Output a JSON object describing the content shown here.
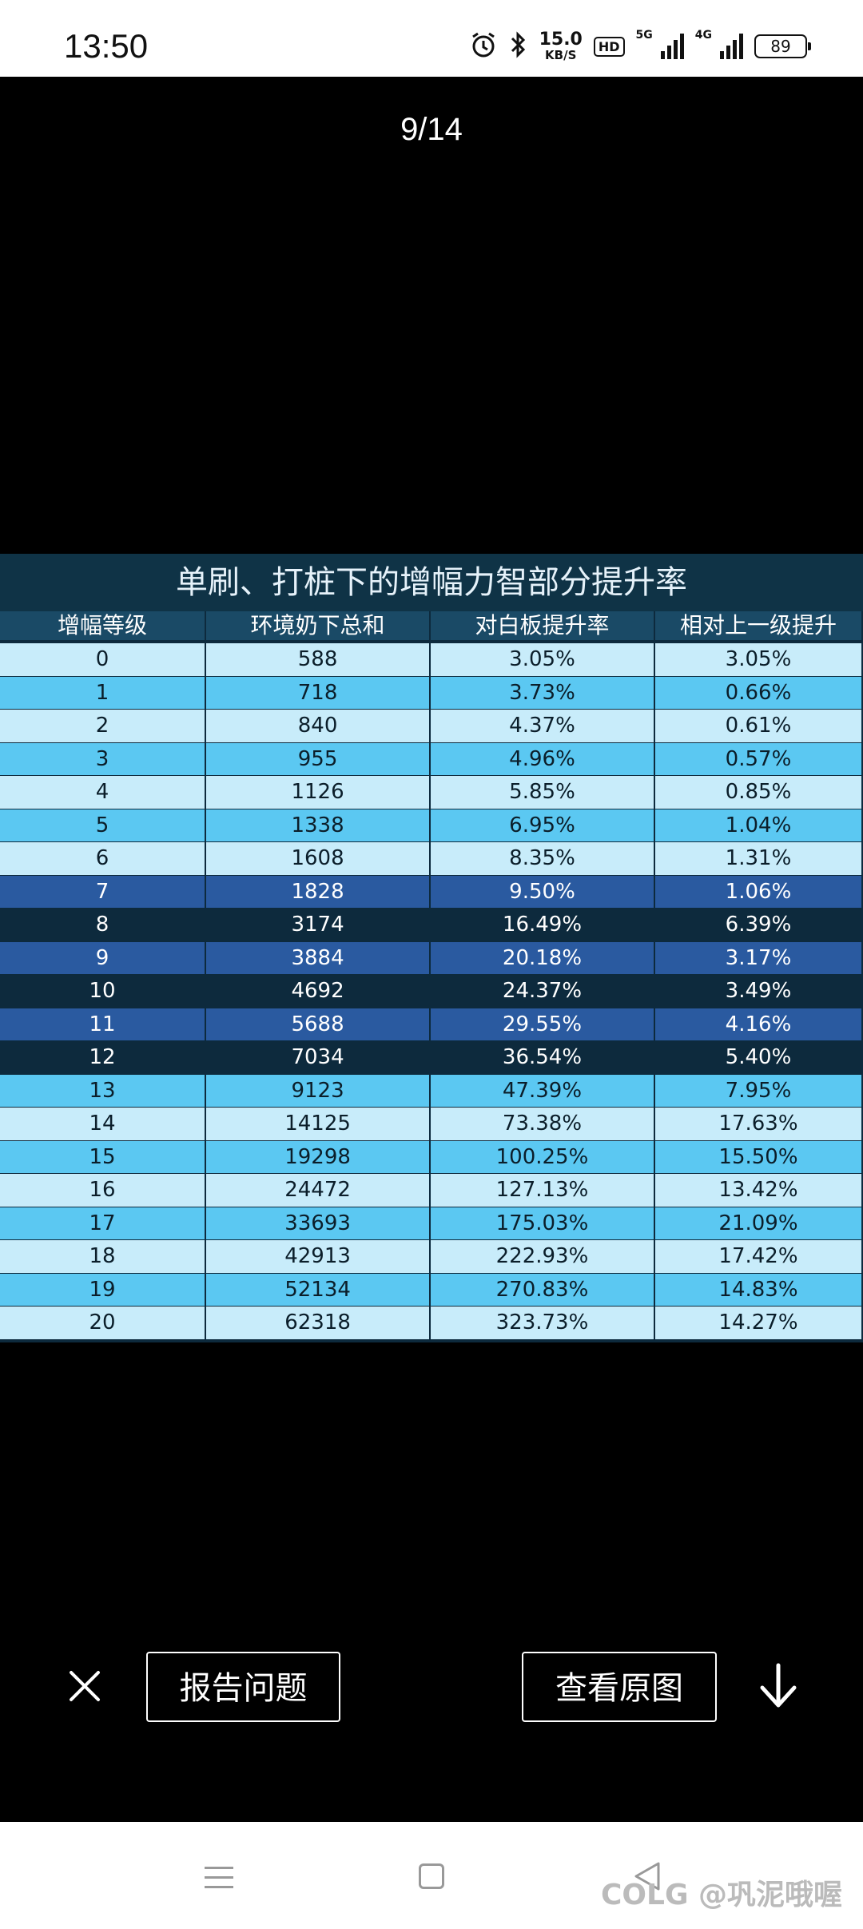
{
  "status_bar": {
    "time": "13:50",
    "net_speed_value": "15.0",
    "net_speed_unit": "KB/S",
    "hd_label": "HD",
    "sig1_label": "5G",
    "sig2_label": "4G",
    "battery": "89"
  },
  "viewer": {
    "counter": "9/14",
    "report_label": "报告问题",
    "view_original_label": "查看原图"
  },
  "table": {
    "title": "单刷、打桩下的增幅力智部分提升率",
    "headers": [
      "增幅等级",
      "环境奶下总和",
      "对白板提升率",
      "相对上一级提升"
    ],
    "rows": [
      [
        "0",
        "588",
        "3.05%",
        "3.05%"
      ],
      [
        "1",
        "718",
        "3.73%",
        "0.66%"
      ],
      [
        "2",
        "840",
        "4.37%",
        "0.61%"
      ],
      [
        "3",
        "955",
        "4.96%",
        "0.57%"
      ],
      [
        "4",
        "1126",
        "5.85%",
        "0.85%"
      ],
      [
        "5",
        "1338",
        "6.95%",
        "1.04%"
      ],
      [
        "6",
        "1608",
        "8.35%",
        "1.31%"
      ],
      [
        "7",
        "1828",
        "9.50%",
        "1.06%"
      ],
      [
        "8",
        "3174",
        "16.49%",
        "6.39%"
      ],
      [
        "9",
        "3884",
        "20.18%",
        "3.17%"
      ],
      [
        "10",
        "4692",
        "24.37%",
        "3.49%"
      ],
      [
        "11",
        "5688",
        "29.55%",
        "4.16%"
      ],
      [
        "12",
        "7034",
        "36.54%",
        "5.40%"
      ],
      [
        "13",
        "9123",
        "47.39%",
        "7.95%"
      ],
      [
        "14",
        "14125",
        "73.38%",
        "17.63%"
      ],
      [
        "15",
        "19298",
        "100.25%",
        "15.50%"
      ],
      [
        "16",
        "24472",
        "127.13%",
        "13.42%"
      ],
      [
        "17",
        "33693",
        "175.03%",
        "21.09%"
      ],
      [
        "18",
        "42913",
        "222.93%",
        "17.42%"
      ],
      [
        "19",
        "52134",
        "270.83%",
        "14.83%"
      ],
      [
        "20",
        "62318",
        "323.73%",
        "14.27%"
      ]
    ],
    "row_colors": [
      "#c8ecfa",
      "#5bc8f2",
      "#c8ecfa",
      "#5bc8f2",
      "#c8ecfa",
      "#5bc8f2",
      "#c8ecfa",
      "#2a5aa0",
      "#0d2a3d",
      "#2a5aa0",
      "#0d2a3d",
      "#2a5aa0",
      "#0d2a3d",
      "#5bc8f2",
      "#c8ecfa",
      "#5bc8f2",
      "#c8ecfa",
      "#5bc8f2",
      "#c8ecfa",
      "#5bc8f2",
      "#c8ecfa"
    ],
    "dark_rows": [
      7,
      8,
      9,
      10,
      11,
      12
    ]
  },
  "navbar": {
    "watermark": "COLG @巩泥哦喔"
  },
  "icons": {
    "close": "close-icon",
    "download": "arrow-down-icon",
    "menu": "menu-icon",
    "home": "home-icon",
    "back": "back-icon",
    "alarm": "alarm-icon",
    "bluetooth": "bluetooth-icon"
  }
}
